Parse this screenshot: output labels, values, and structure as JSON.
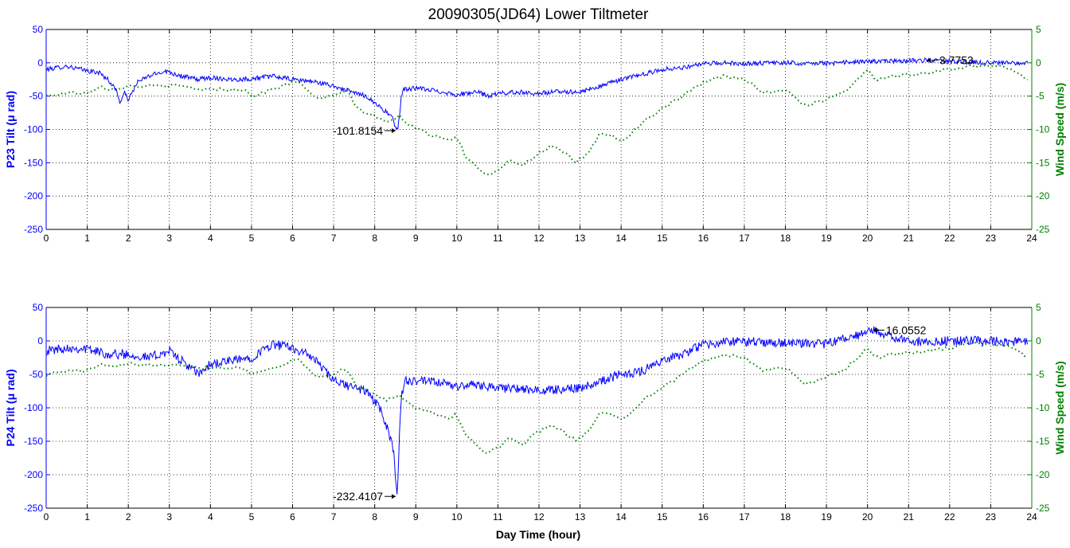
{
  "figure": {
    "title": "20090305(JD64) Lower Tiltmeter",
    "xlabel": "Day Time (hour)"
  },
  "colors": {
    "tilt": "#0000ff",
    "wind": "#008000",
    "grid": "#000000",
    "text": "#000000"
  },
  "chart_data": [
    {
      "type": "line",
      "name": "upper-panel",
      "ylabel_left": "P23 Tilt (μ rad)",
      "ylabel_right": "Wind Speed (m/s)",
      "xlim": [
        0,
        24
      ],
      "ylim_left": [
        -250,
        50
      ],
      "ylim_right": [
        -25,
        5
      ],
      "x_ticks": [
        0,
        1,
        2,
        3,
        4,
        5,
        6,
        7,
        8,
        9,
        10,
        11,
        12,
        13,
        14,
        15,
        16,
        17,
        18,
        19,
        20,
        21,
        22,
        23,
        24
      ],
      "y_ticks_left": [
        50,
        0,
        -50,
        -100,
        -150,
        -200,
        -250
      ],
      "y_ticks_right": [
        5,
        0,
        -5,
        -10,
        -15,
        -20,
        -25
      ],
      "grid": true,
      "series": [
        {
          "name": "P23 Tilt",
          "axis": "left",
          "style": "solid",
          "noise": 3.5,
          "x": [
            0.0,
            0.5,
            1.0,
            1.3,
            1.5,
            1.7,
            1.8,
            1.9,
            2.0,
            2.1,
            2.2,
            2.5,
            2.9,
            3.3,
            3.7,
            4.0,
            4.5,
            5.0,
            5.5,
            6.0,
            6.5,
            7.0,
            7.5,
            7.8,
            8.0,
            8.2,
            8.4,
            8.55,
            8.6,
            8.65,
            8.7,
            9.0,
            9.5,
            10.0,
            10.5,
            10.8,
            11.0,
            11.5,
            12.0,
            12.5,
            13.0,
            13.5,
            14.0,
            14.5,
            15.0,
            15.5,
            16.0,
            16.5,
            17.0,
            18.0,
            19.0,
            20.0,
            21.0,
            21.4,
            22.0,
            23.0,
            23.9
          ],
          "y": [
            -10,
            -5,
            -12,
            -15,
            -25,
            -40,
            -60,
            -45,
            -55,
            -45,
            -30,
            -20,
            -12,
            -20,
            -25,
            -22,
            -25,
            -24,
            -20,
            -25,
            -28,
            -35,
            -45,
            -50,
            -60,
            -70,
            -80,
            -101.8154,
            -80,
            -50,
            -40,
            -38,
            -42,
            -48,
            -44,
            -50,
            -46,
            -44,
            -46,
            -43,
            -44,
            -35,
            -25,
            -18,
            -10,
            -7,
            -2,
            0,
            -1,
            0,
            -1,
            2,
            3,
            3.7753,
            2,
            0,
            -1
          ]
        },
        {
          "name": "Wind Speed",
          "axis": "right",
          "style": "dotted",
          "noise": 0.25,
          "x": [
            0.0,
            0.5,
            1.0,
            1.3,
            1.6,
            2.0,
            2.3,
            2.8,
            3.3,
            3.8,
            4.3,
            4.8,
            5.0,
            5.5,
            6.0,
            6.2,
            6.6,
            7.0,
            7.3,
            7.6,
            8.0,
            8.3,
            8.6,
            9.0,
            9.5,
            9.8,
            10.0,
            10.2,
            10.5,
            10.7,
            11.0,
            11.3,
            11.6,
            12.0,
            12.3,
            12.6,
            12.9,
            13.2,
            13.5,
            13.8,
            14.0,
            14.5,
            15.0,
            15.5,
            16.0,
            16.5,
            17.0,
            17.5,
            18.0,
            18.5,
            19.0,
            19.5,
            20.0,
            20.2,
            20.6,
            21.0,
            21.5,
            22.0,
            22.5,
            23.0,
            23.5,
            23.9
          ],
          "y": [
            -5,
            -4.5,
            -4.5,
            -3.5,
            -4,
            -3.5,
            -3.5,
            -3.5,
            -3.5,
            -4,
            -4,
            -4,
            -5,
            -4,
            -3,
            -3,
            -5.5,
            -5,
            -4,
            -7,
            -8,
            -9,
            -8,
            -10,
            -11,
            -11.5,
            -11,
            -14,
            -15.5,
            -17,
            -16,
            -14.5,
            -15.5,
            -13.5,
            -12.5,
            -13.5,
            -15,
            -13.5,
            -10.5,
            -11,
            -12,
            -9,
            -7,
            -5,
            -3,
            -2,
            -2.5,
            -4.5,
            -4,
            -6.5,
            -5.5,
            -4,
            -1,
            -2.5,
            -2,
            -1.8,
            -1.5,
            -1,
            -0.5,
            -0.5,
            -0.8,
            -2.5
          ]
        }
      ],
      "annotations": [
        {
          "text": "-101.8154",
          "x": 8.55,
          "y": -101.8154,
          "side": "left"
        },
        {
          "text": "3.7753",
          "x": 21.4,
          "y": 3.7753,
          "side": "right"
        }
      ]
    },
    {
      "type": "line",
      "name": "lower-panel",
      "ylabel_left": "P24 Tilt (μ rad)",
      "ylabel_right": "Wind Speed (m/s)",
      "xlim": [
        0,
        24
      ],
      "ylim_left": [
        -250,
        50
      ],
      "ylim_right": [
        -25,
        5
      ],
      "x_ticks": [
        0,
        1,
        2,
        3,
        4,
        5,
        6,
        7,
        8,
        9,
        10,
        11,
        12,
        13,
        14,
        15,
        16,
        17,
        18,
        19,
        20,
        21,
        22,
        23,
        24
      ],
      "y_ticks_left": [
        50,
        0,
        -50,
        -100,
        -150,
        -200,
        -250
      ],
      "y_ticks_right": [
        5,
        0,
        -5,
        -10,
        -15,
        -20,
        -25
      ],
      "grid": true,
      "series": [
        {
          "name": "P24 Tilt",
          "axis": "left",
          "style": "solid",
          "noise": 7,
          "x": [
            0.0,
            0.5,
            1.0,
            1.5,
            2.0,
            2.5,
            3.0,
            3.3,
            3.7,
            4.0,
            4.5,
            5.0,
            5.5,
            6.0,
            6.5,
            7.0,
            7.5,
            7.8,
            8.0,
            8.2,
            8.35,
            8.45,
            8.55,
            8.6,
            8.65,
            8.75,
            9.0,
            9.5,
            10.0,
            10.5,
            11.0,
            11.5,
            12.0,
            12.5,
            13.0,
            13.5,
            14.0,
            14.5,
            15.0,
            15.5,
            16.0,
            16.5,
            17.0,
            18.0,
            19.0,
            20.0,
            20.1,
            20.5,
            21.0,
            22.0,
            23.0,
            23.9
          ],
          "y": [
            -15,
            -10,
            -12,
            -20,
            -20,
            -25,
            -15,
            -30,
            -50,
            -35,
            -30,
            -25,
            -5,
            -10,
            -25,
            -60,
            -70,
            -75,
            -90,
            -110,
            -140,
            -160,
            -232.4107,
            -140,
            -80,
            -60,
            -60,
            -62,
            -68,
            -65,
            -70,
            -72,
            -75,
            -72,
            -70,
            -60,
            -50,
            -45,
            -30,
            -20,
            -5,
            -2,
            -1,
            -3,
            -5,
            12,
            16.0552,
            8,
            -1,
            0,
            0,
            -2
          ]
        },
        {
          "name": "Wind Speed",
          "axis": "right",
          "style": "dotted",
          "noise": 0.25,
          "x": [
            0.0,
            0.5,
            1.0,
            1.3,
            1.6,
            2.0,
            2.3,
            2.8,
            3.3,
            3.8,
            4.3,
            4.8,
            5.0,
            5.5,
            6.0,
            6.2,
            6.6,
            7.0,
            7.3,
            7.6,
            8.0,
            8.3,
            8.6,
            9.0,
            9.5,
            9.8,
            10.0,
            10.2,
            10.5,
            10.7,
            11.0,
            11.3,
            11.6,
            12.0,
            12.3,
            12.6,
            12.9,
            13.2,
            13.5,
            13.8,
            14.0,
            14.5,
            15.0,
            15.5,
            16.0,
            16.5,
            17.0,
            17.5,
            18.0,
            18.5,
            19.0,
            19.5,
            20.0,
            20.2,
            20.6,
            21.0,
            21.5,
            22.0,
            22.5,
            23.0,
            23.5,
            23.9
          ],
          "y": [
            -5,
            -4.5,
            -4.5,
            -3.5,
            -4,
            -3.5,
            -3.5,
            -3.5,
            -3.5,
            -4,
            -4,
            -4,
            -5,
            -4,
            -3,
            -3,
            -5.5,
            -5,
            -4,
            -7,
            -8,
            -9,
            -8,
            -10,
            -11,
            -11.5,
            -11,
            -14,
            -15.5,
            -17,
            -16,
            -14.5,
            -15.5,
            -13.5,
            -12.5,
            -13.5,
            -15,
            -13.5,
            -10.5,
            -11,
            -12,
            -9,
            -7,
            -5,
            -3,
            -2,
            -2.5,
            -4.5,
            -4,
            -6.5,
            -5.5,
            -4,
            -1,
            -2.5,
            -2,
            -1.8,
            -1.5,
            -1,
            -0.5,
            -0.5,
            -0.8,
            -2.5
          ]
        }
      ],
      "annotations": [
        {
          "text": "-232.4107",
          "x": 8.55,
          "y": -232.4107,
          "side": "left"
        },
        {
          "text": "16.0552",
          "x": 20.1,
          "y": 16.0552,
          "side": "right"
        }
      ]
    }
  ]
}
